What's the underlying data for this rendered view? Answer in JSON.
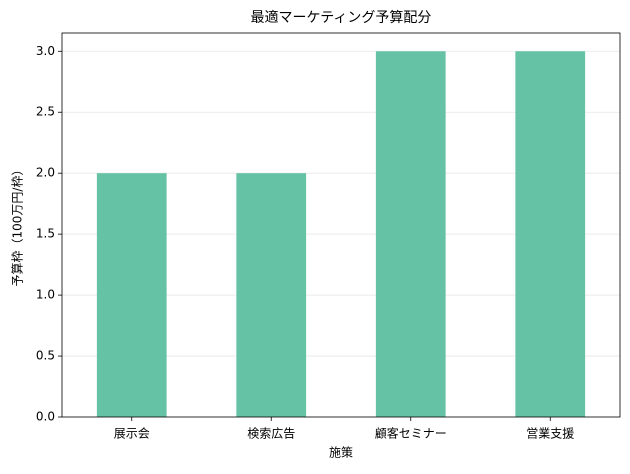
{
  "chart_data": {
    "type": "bar",
    "title": "最適マーケティング予算配分",
    "x_label": "施策",
    "y_label": "予算枠（100万円/枠）",
    "categories": [
      "展示会",
      "検索広告",
      "顧客セミナー",
      "営業支援"
    ],
    "values": [
      2,
      2,
      3,
      3
    ],
    "color": "#66c2a5",
    "ylim": [
      0,
      3.15
    ],
    "yticks": [
      {
        "value": 0,
        "label": "0.0"
      },
      {
        "value": 0.5,
        "label": "0.5"
      },
      {
        "value": 1,
        "label": "1.0"
      },
      {
        "value": 1.5,
        "label": "1.5"
      },
      {
        "value": 2,
        "label": "2.0"
      },
      {
        "value": 2.5,
        "label": "2.5"
      },
      {
        "value": 3,
        "label": "3.0"
      }
    ],
    "grid": true
  }
}
